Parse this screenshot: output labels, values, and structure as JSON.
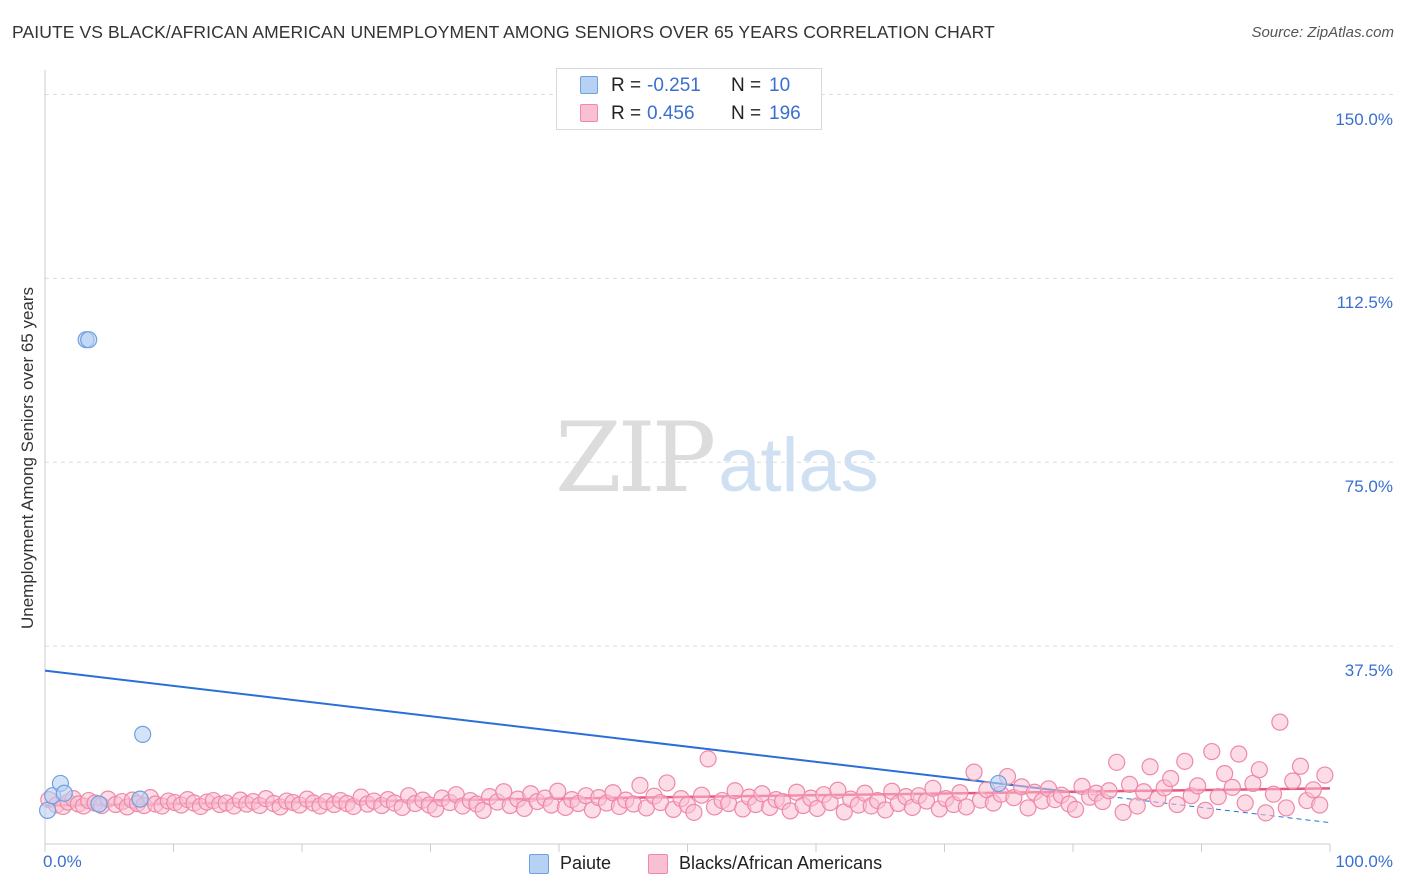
{
  "header": {
    "title": "PAIUTE VS BLACK/AFRICAN AMERICAN UNEMPLOYMENT AMONG SENIORS OVER 65 YEARS CORRELATION CHART",
    "source": "Source: ZipAtlas.com"
  },
  "watermark": {
    "zip": "ZIP",
    "atlas": "atlas"
  },
  "legend": {
    "rows": [
      {
        "r_label": "R =",
        "r_value": "-0.251",
        "n_label": "N =",
        "n_value": "10"
      },
      {
        "r_label": "R =",
        "r_value": "0.456",
        "n_label": "N =",
        "n_value": "196"
      }
    ]
  },
  "bottom_legend": {
    "items": [
      "Paiute",
      "Blacks/African Americans"
    ]
  },
  "colors": {
    "paiute_fill": "#b7d1f3",
    "paiute_stroke": "#6fa0e0",
    "paiute_line": "#2a6fd6",
    "black_fill": "#f9c0d2",
    "black_stroke": "#ee89a9",
    "black_line": "#e8557f",
    "axis_text": "#3a6fcf",
    "grid": "#dcdcdc"
  },
  "chart_data": {
    "type": "scatter",
    "title": "PAIUTE VS BLACK/AFRICAN AMERICAN UNEMPLOYMENT AMONG SENIORS OVER 65 YEARS CORRELATION CHART",
    "xlabel": "",
    "ylabel": "Unemployment Among Seniors over 65 years",
    "xlim": [
      0,
      100
    ],
    "ylim": [
      0,
      155
    ],
    "x_tick_labels": [
      "0.0%",
      "100.0%"
    ],
    "y_ticks": [
      37.5,
      75.0,
      112.5,
      150.0
    ],
    "y_tick_labels": [
      "37.5%",
      "75.0%",
      "112.5%",
      "150.0%"
    ],
    "grid": true,
    "series": [
      {
        "name": "Paiute",
        "r": -0.251,
        "n": 10,
        "points": [
          [
            0.2,
            4.0
          ],
          [
            0.6,
            7.0
          ],
          [
            1.2,
            9.5
          ],
          [
            1.5,
            7.5
          ],
          [
            3.2,
            100.0
          ],
          [
            3.4,
            100.0
          ],
          [
            4.2,
            5.3
          ],
          [
            7.4,
            6.3
          ],
          [
            7.6,
            19.5
          ],
          [
            74.2,
            9.5
          ]
        ],
        "trend": {
          "x": [
            0,
            100
          ],
          "y": [
            32.5,
            1.5
          ],
          "solid_until_x": 80
        }
      },
      {
        "name": "Blacks/African Americans",
        "r": 0.456,
        "n": 196,
        "points": [
          [
            0.3,
            6.2
          ],
          [
            0.9,
            5.1
          ],
          [
            1.4,
            4.8
          ],
          [
            1.8,
            5.7
          ],
          [
            2.2,
            6.4
          ],
          [
            2.6,
            5.3
          ],
          [
            3.0,
            4.9
          ],
          [
            3.4,
            6.0
          ],
          [
            3.9,
            5.5
          ],
          [
            4.4,
            5.0
          ],
          [
            4.9,
            6.3
          ],
          [
            5.5,
            5.2
          ],
          [
            6.0,
            5.8
          ],
          [
            6.4,
            4.7
          ],
          [
            6.8,
            6.1
          ],
          [
            7.2,
            5.4
          ],
          [
            7.7,
            5.0
          ],
          [
            8.2,
            6.6
          ],
          [
            8.6,
            5.3
          ],
          [
            9.1,
            4.9
          ],
          [
            9.6,
            5.9
          ],
          [
            10.1,
            5.6
          ],
          [
            10.6,
            5.1
          ],
          [
            11.1,
            6.2
          ],
          [
            11.6,
            5.5
          ],
          [
            12.1,
            4.8
          ],
          [
            12.6,
            5.7
          ],
          [
            13.1,
            6.0
          ],
          [
            13.6,
            5.2
          ],
          [
            14.1,
            5.5
          ],
          [
            14.7,
            4.9
          ],
          [
            15.2,
            6.1
          ],
          [
            15.7,
            5.3
          ],
          [
            16.2,
            5.8
          ],
          [
            16.7,
            5.0
          ],
          [
            17.2,
            6.4
          ],
          [
            17.8,
            5.4
          ],
          [
            18.3,
            4.7
          ],
          [
            18.8,
            5.9
          ],
          [
            19.3,
            5.6
          ],
          [
            19.8,
            5.1
          ],
          [
            20.4,
            6.3
          ],
          [
            20.9,
            5.5
          ],
          [
            21.4,
            4.9
          ],
          [
            21.9,
            5.8
          ],
          [
            22.5,
            5.2
          ],
          [
            23.0,
            6.0
          ],
          [
            23.5,
            5.4
          ],
          [
            24.0,
            4.8
          ],
          [
            24.6,
            6.7
          ],
          [
            25.1,
            5.3
          ],
          [
            25.6,
            5.9
          ],
          [
            26.2,
            5.0
          ],
          [
            26.7,
            6.2
          ],
          [
            27.2,
            5.5
          ],
          [
            27.8,
            4.6
          ],
          [
            28.3,
            7.0
          ],
          [
            28.8,
            5.4
          ],
          [
            29.4,
            6.1
          ],
          [
            29.9,
            5.1
          ],
          [
            30.4,
            4.3
          ],
          [
            30.9,
            6.5
          ],
          [
            31.5,
            5.6
          ],
          [
            32.0,
            7.2
          ],
          [
            32.5,
            4.9
          ],
          [
            33.1,
            6.0
          ],
          [
            33.6,
            5.3
          ],
          [
            34.1,
            4.0
          ],
          [
            34.6,
            6.8
          ],
          [
            35.2,
            5.7
          ],
          [
            35.7,
            7.8
          ],
          [
            36.2,
            5.0
          ],
          [
            36.8,
            6.3
          ],
          [
            37.3,
            4.4
          ],
          [
            37.8,
            7.4
          ],
          [
            38.3,
            5.8
          ],
          [
            38.9,
            6.5
          ],
          [
            39.4,
            5.1
          ],
          [
            39.9,
            7.9
          ],
          [
            40.5,
            4.6
          ],
          [
            41.0,
            6.2
          ],
          [
            41.5,
            5.4
          ],
          [
            42.1,
            7.0
          ],
          [
            42.6,
            4.1
          ],
          [
            43.1,
            6.6
          ],
          [
            43.7,
            5.5
          ],
          [
            44.2,
            7.6
          ],
          [
            44.7,
            4.8
          ],
          [
            45.2,
            6.1
          ],
          [
            45.8,
            5.3
          ],
          [
            46.3,
            9.1
          ],
          [
            46.8,
            4.5
          ],
          [
            47.4,
            6.9
          ],
          [
            47.9,
            5.6
          ],
          [
            48.4,
            9.6
          ],
          [
            48.9,
            4.2
          ],
          [
            49.5,
            6.4
          ],
          [
            50.0,
            5.1
          ],
          [
            50.5,
            3.6
          ],
          [
            51.1,
            7.1
          ],
          [
            51.6,
            14.5
          ],
          [
            52.1,
            4.7
          ],
          [
            52.7,
            6.0
          ],
          [
            53.2,
            5.4
          ],
          [
            53.7,
            8.0
          ],
          [
            54.3,
            4.3
          ],
          [
            54.8,
            6.7
          ],
          [
            55.3,
            5.2
          ],
          [
            55.8,
            7.4
          ],
          [
            56.4,
            4.6
          ],
          [
            56.9,
            6.2
          ],
          [
            57.4,
            5.8
          ],
          [
            58.0,
            3.9
          ],
          [
            58.5,
            7.7
          ],
          [
            59.0,
            5.0
          ],
          [
            59.6,
            6.5
          ],
          [
            60.1,
            4.4
          ],
          [
            60.6,
            7.2
          ],
          [
            61.1,
            5.6
          ],
          [
            61.7,
            8.1
          ],
          [
            62.2,
            3.7
          ],
          [
            62.7,
            6.3
          ],
          [
            63.3,
            5.1
          ],
          [
            63.8,
            7.5
          ],
          [
            64.3,
            4.9
          ],
          [
            64.8,
            6.0
          ],
          [
            65.4,
            4.1
          ],
          [
            65.9,
            7.9
          ],
          [
            66.4,
            5.4
          ],
          [
            67.0,
            6.8
          ],
          [
            67.5,
            4.6
          ],
          [
            68.0,
            7.0
          ],
          [
            68.6,
            5.9
          ],
          [
            69.1,
            8.5
          ],
          [
            69.6,
            4.3
          ],
          [
            70.1,
            6.4
          ],
          [
            70.7,
            5.2
          ],
          [
            71.2,
            7.6
          ],
          [
            71.7,
            4.7
          ],
          [
            72.3,
            11.8
          ],
          [
            72.8,
            6.1
          ],
          [
            73.3,
            8.2
          ],
          [
            73.8,
            5.5
          ],
          [
            74.4,
            7.3
          ],
          [
            74.9,
            10.9
          ],
          [
            75.4,
            6.6
          ],
          [
            76.0,
            8.8
          ],
          [
            76.5,
            4.5
          ],
          [
            77.0,
            7.7
          ],
          [
            77.6,
            5.9
          ],
          [
            78.1,
            8.4
          ],
          [
            78.6,
            6.2
          ],
          [
            79.1,
            7.1
          ],
          [
            79.7,
            5.3
          ],
          [
            80.2,
            4.2
          ],
          [
            80.7,
            8.9
          ],
          [
            81.3,
            6.7
          ],
          [
            81.8,
            7.5
          ],
          [
            82.3,
            5.8
          ],
          [
            82.8,
            8.0
          ],
          [
            83.4,
            13.8
          ],
          [
            83.9,
            3.6
          ],
          [
            84.4,
            9.3
          ],
          [
            85.0,
            4.9
          ],
          [
            85.5,
            7.8
          ],
          [
            86.0,
            12.9
          ],
          [
            86.6,
            6.4
          ],
          [
            87.1,
            8.6
          ],
          [
            87.6,
            10.5
          ],
          [
            88.1,
            5.2
          ],
          [
            88.7,
            14.0
          ],
          [
            89.2,
            7.0
          ],
          [
            89.7,
            9.0
          ],
          [
            90.3,
            4.0
          ],
          [
            90.8,
            16.0
          ],
          [
            91.3,
            6.8
          ],
          [
            91.8,
            11.5
          ],
          [
            92.4,
            8.7
          ],
          [
            92.9,
            15.5
          ],
          [
            93.4,
            5.5
          ],
          [
            94.0,
            9.5
          ],
          [
            94.5,
            12.3
          ],
          [
            95.0,
            3.5
          ],
          [
            95.6,
            7.3
          ],
          [
            96.1,
            22.0
          ],
          [
            96.6,
            4.5
          ],
          [
            97.1,
            10.0
          ],
          [
            97.7,
            13.0
          ],
          [
            98.2,
            6.0
          ],
          [
            98.7,
            8.2
          ],
          [
            99.2,
            5.1
          ],
          [
            99.6,
            11.2
          ]
        ],
        "trend": {
          "x": [
            0,
            100
          ],
          "y": [
            5.0,
            8.5
          ]
        }
      }
    ]
  }
}
